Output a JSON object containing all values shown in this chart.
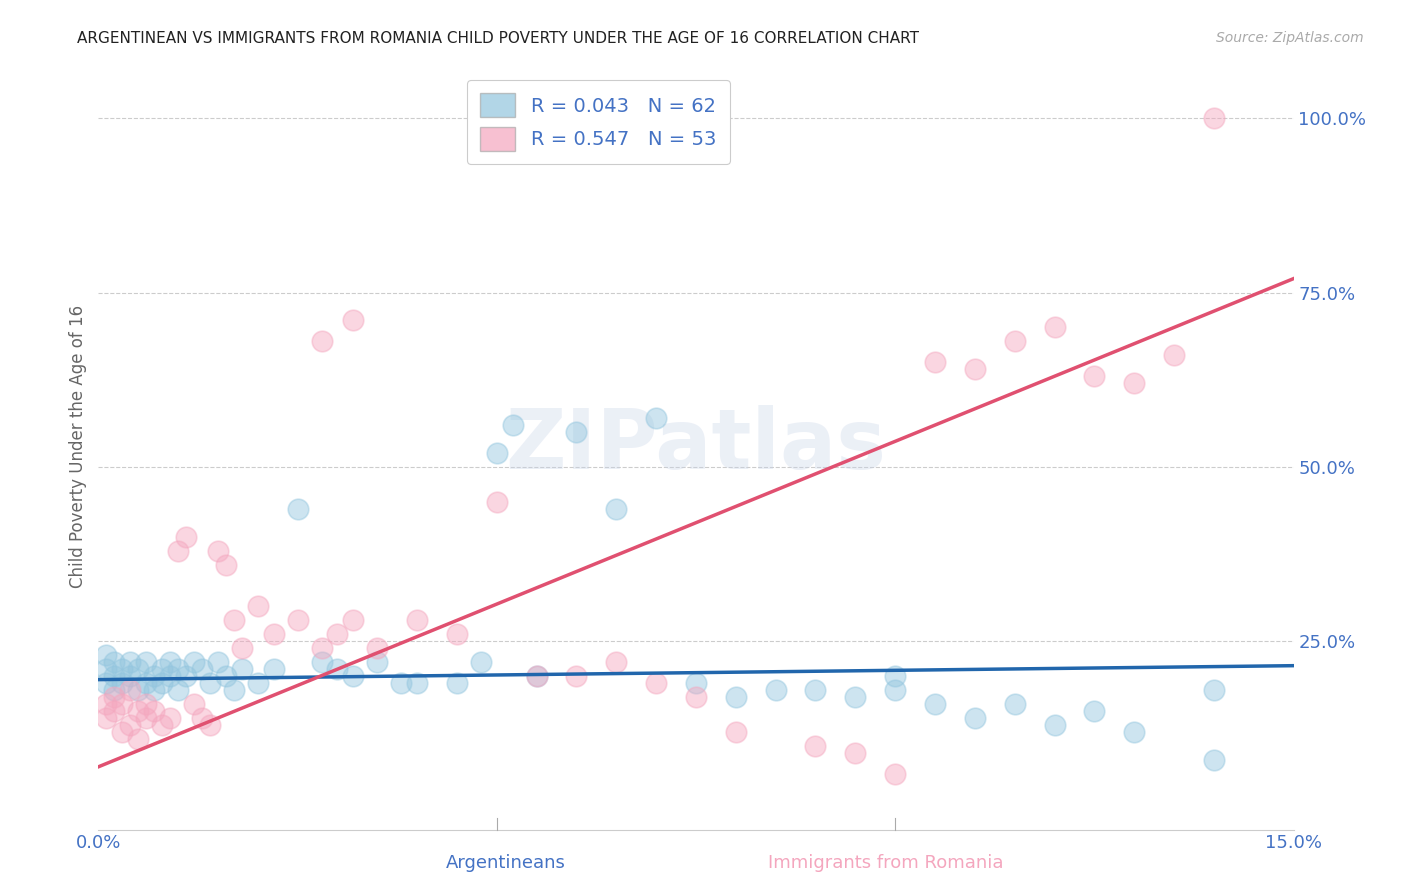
{
  "title": "ARGENTINEAN VS IMMIGRANTS FROM ROMANIA CHILD POVERTY UNDER THE AGE OF 16 CORRELATION CHART",
  "source": "Source: ZipAtlas.com",
  "xlabel_blue": "Argentineans",
  "xlabel_pink": "Immigrants from Romania",
  "ylabel": "Child Poverty Under the Age of 16",
  "blue_R": 0.043,
  "blue_N": 62,
  "pink_R": 0.547,
  "pink_N": 53,
  "xlim": [
    0.0,
    0.15
  ],
  "ylim": [
    -0.02,
    1.08
  ],
  "blue_color": "#92c5de",
  "pink_color": "#f4a6be",
  "blue_line_color": "#2166ac",
  "pink_line_color": "#e05070",
  "watermark_text": "ZIPatlas",
  "blue_x": [
    0.001,
    0.001,
    0.001,
    0.002,
    0.002,
    0.002,
    0.003,
    0.003,
    0.004,
    0.004,
    0.005,
    0.005,
    0.006,
    0.006,
    0.007,
    0.007,
    0.008,
    0.008,
    0.009,
    0.009,
    0.01,
    0.01,
    0.011,
    0.012,
    0.013,
    0.014,
    0.015,
    0.016,
    0.017,
    0.018,
    0.02,
    0.022,
    0.025,
    0.028,
    0.03,
    0.032,
    0.035,
    0.038,
    0.04,
    0.045,
    0.048,
    0.05,
    0.052,
    0.055,
    0.06,
    0.065,
    0.07,
    0.075,
    0.08,
    0.085,
    0.09,
    0.095,
    0.1,
    0.1,
    0.105,
    0.11,
    0.115,
    0.12,
    0.125,
    0.13,
    0.14,
    0.14
  ],
  "blue_y": [
    0.19,
    0.21,
    0.23,
    0.18,
    0.2,
    0.22,
    0.19,
    0.21,
    0.2,
    0.22,
    0.18,
    0.21,
    0.19,
    0.22,
    0.18,
    0.2,
    0.21,
    0.19,
    0.22,
    0.2,
    0.18,
    0.21,
    0.2,
    0.22,
    0.21,
    0.19,
    0.22,
    0.2,
    0.18,
    0.21,
    0.19,
    0.21,
    0.44,
    0.22,
    0.21,
    0.2,
    0.22,
    0.19,
    0.19,
    0.19,
    0.22,
    0.52,
    0.56,
    0.2,
    0.55,
    0.44,
    0.57,
    0.19,
    0.17,
    0.18,
    0.18,
    0.17,
    0.18,
    0.2,
    0.16,
    0.14,
    0.16,
    0.13,
    0.15,
    0.12,
    0.18,
    0.08
  ],
  "pink_x": [
    0.001,
    0.001,
    0.002,
    0.002,
    0.003,
    0.003,
    0.004,
    0.004,
    0.005,
    0.005,
    0.006,
    0.006,
    0.007,
    0.008,
    0.009,
    0.01,
    0.011,
    0.012,
    0.013,
    0.014,
    0.015,
    0.016,
    0.017,
    0.018,
    0.02,
    0.022,
    0.025,
    0.028,
    0.03,
    0.032,
    0.035,
    0.04,
    0.045,
    0.05,
    0.055,
    0.06,
    0.065,
    0.07,
    0.075,
    0.08,
    0.09,
    0.095,
    0.1,
    0.105,
    0.11,
    0.115,
    0.12,
    0.125,
    0.13,
    0.135,
    0.14,
    0.028,
    0.032
  ],
  "pink_y": [
    0.14,
    0.16,
    0.15,
    0.17,
    0.12,
    0.16,
    0.13,
    0.18,
    0.11,
    0.15,
    0.14,
    0.16,
    0.15,
    0.13,
    0.14,
    0.38,
    0.4,
    0.16,
    0.14,
    0.13,
    0.38,
    0.36,
    0.28,
    0.24,
    0.3,
    0.26,
    0.28,
    0.24,
    0.26,
    0.28,
    0.24,
    0.28,
    0.26,
    0.45,
    0.2,
    0.2,
    0.22,
    0.19,
    0.17,
    0.12,
    0.1,
    0.09,
    0.06,
    0.65,
    0.64,
    0.68,
    0.7,
    0.63,
    0.62,
    0.66,
    1.0,
    0.68,
    0.71
  ],
  "blue_line_x": [
    0.0,
    0.15
  ],
  "blue_line_y": [
    0.195,
    0.215
  ],
  "pink_line_x": [
    0.0,
    0.15
  ],
  "pink_line_y": [
    0.07,
    0.77
  ]
}
